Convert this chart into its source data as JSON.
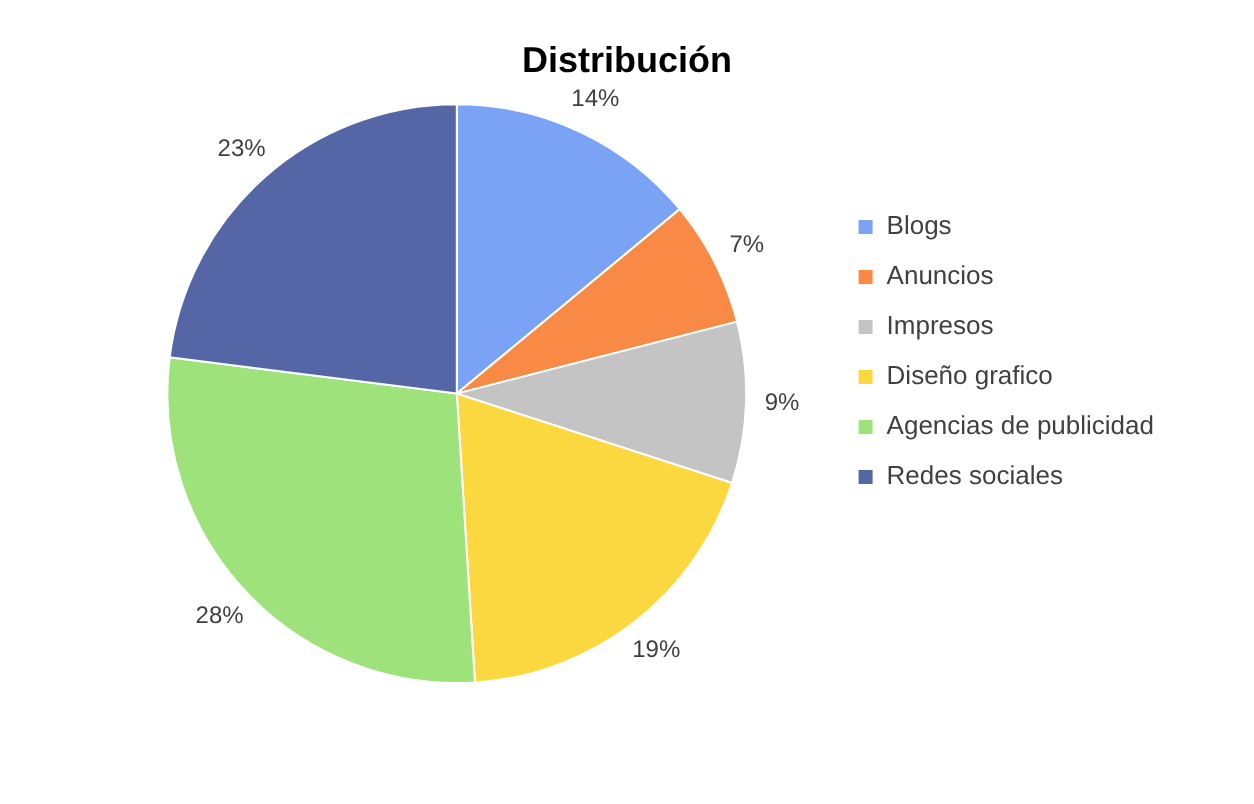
{
  "chart_data": {
    "type": "pie",
    "title": "Distribución",
    "categories": [
      "Blogs",
      "Anuncios",
      "Impresos",
      "Diseño grafico",
      "Agencias de publicidad",
      "Redes sociales"
    ],
    "values": [
      14,
      7,
      9,
      19,
      28,
      23
    ],
    "value_labels": [
      "14%",
      "7%",
      "9%",
      "19%",
      "28%",
      "23%"
    ],
    "colors": [
      "#7aa3f5",
      "#f98a45",
      "#c4c4c4",
      "#fcd840",
      "#9ee27c",
      "#5566a6"
    ],
    "legend": "right"
  }
}
